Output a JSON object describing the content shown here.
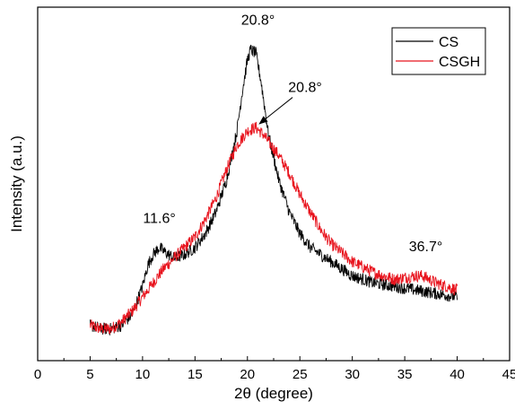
{
  "chart_data": {
    "type": "line",
    "title": "",
    "xlabel": "2θ (degree)",
    "ylabel": "Intensity (a.u.)",
    "xlim": [
      0,
      45
    ],
    "xticks": [
      0,
      5,
      10,
      15,
      20,
      25,
      30,
      35,
      40,
      45
    ],
    "ylim": [
      0,
      1
    ],
    "y_ticks_labeled": false,
    "grid": false,
    "legend_position": "top-right",
    "series": [
      {
        "name": "CS",
        "color": "#000000",
        "x": [
          5,
          6,
          7,
          8,
          9,
          10,
          10.5,
          11,
          11.6,
          12,
          13,
          14,
          15,
          16,
          17,
          18,
          19,
          19.5,
          20,
          20.3,
          20.8,
          21.3,
          22,
          23,
          24,
          25,
          26,
          27,
          28,
          30,
          32,
          34,
          36,
          38,
          40
        ],
        "values": [
          0.1,
          0.09,
          0.09,
          0.1,
          0.13,
          0.21,
          0.27,
          0.3,
          0.32,
          0.31,
          0.29,
          0.3,
          0.32,
          0.36,
          0.42,
          0.51,
          0.65,
          0.76,
          0.85,
          0.88,
          0.87,
          0.79,
          0.64,
          0.51,
          0.42,
          0.36,
          0.32,
          0.3,
          0.28,
          0.24,
          0.22,
          0.21,
          0.2,
          0.19,
          0.18
        ]
      },
      {
        "name": "CSGH",
        "color": "#e8141e",
        "x": [
          5,
          6,
          7,
          8,
          9,
          10,
          11,
          12,
          13,
          14,
          15,
          16,
          17,
          18,
          19,
          20,
          20.8,
          21.5,
          22,
          23,
          24,
          25,
          26,
          27,
          28,
          30,
          32,
          34,
          36,
          36.7,
          38,
          40
        ],
        "values": [
          0.1,
          0.09,
          0.09,
          0.11,
          0.14,
          0.18,
          0.22,
          0.26,
          0.29,
          0.32,
          0.35,
          0.4,
          0.46,
          0.54,
          0.61,
          0.65,
          0.66,
          0.64,
          0.62,
          0.58,
          0.53,
          0.47,
          0.42,
          0.37,
          0.33,
          0.28,
          0.25,
          0.23,
          0.24,
          0.24,
          0.22,
          0.2
        ]
      }
    ],
    "annotations": [
      {
        "text": "20.8°",
        "x": 21.0,
        "y": 0.95
      },
      {
        "text": "20.8°",
        "x": 25.5,
        "y": 0.76,
        "arrow_to_x": 20.8,
        "arrow_to_y": 0.66
      },
      {
        "text": "11.6°",
        "x": 11.6,
        "y": 0.39
      },
      {
        "text": "36.7°",
        "x": 37.0,
        "y": 0.31
      }
    ]
  }
}
